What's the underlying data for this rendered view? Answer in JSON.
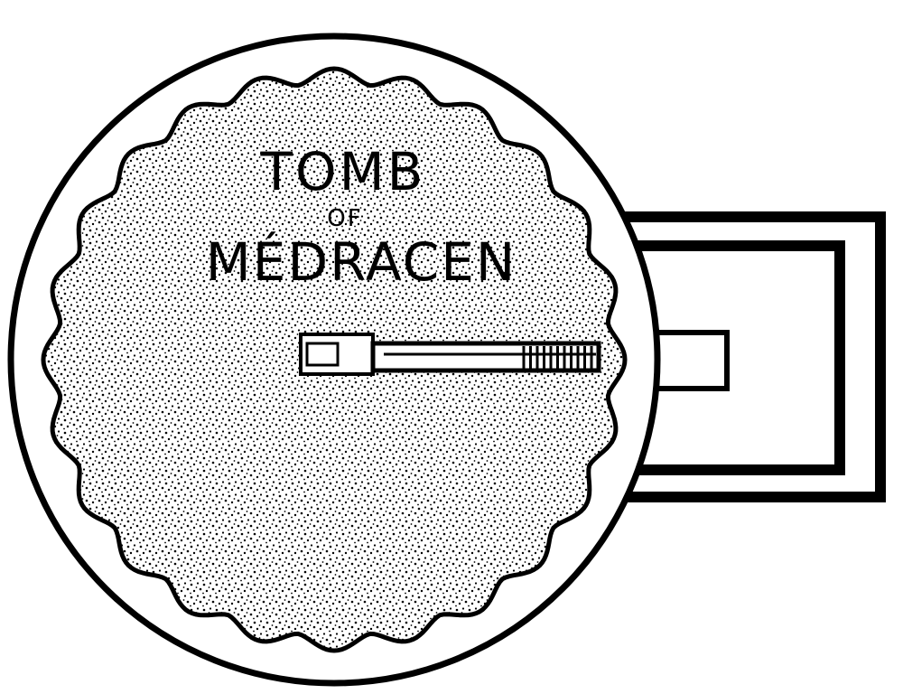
{
  "diagram": {
    "title_line_1": "TOMB",
    "title_line_2": "OF",
    "title_line_3": "MÉDRACEN",
    "ink_color": "#000000",
    "paper_color": "#ffffff"
  }
}
